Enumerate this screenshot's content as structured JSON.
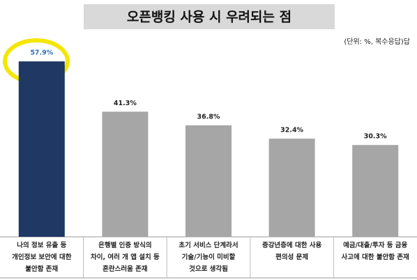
{
  "chart_data": {
    "type": "bar",
    "title": "오픈뱅킹 사용 시 우려되는 점",
    "subtitle": "(단위: %, 복수응답)답",
    "categories": [
      "나의 정보 유출 등\n개인정보 보안에 대한\n불안함 존재",
      "은행별 인증 방식의\n차이, 여러 개 앱 설치 등\n혼란스러움 존재",
      "초기 서비스 단계라서\n기술/기능이 미비할\n것으로 생각됨",
      "증강년층에 대한 사용\n편의성 문제",
      "예금/대출/투자 등 금융\n사고에 대한 불안함 존재"
    ],
    "values": [
      57.9,
      41.3,
      36.8,
      32.4,
      30.3
    ],
    "value_labels": [
      "57.9%",
      "41.3%",
      "36.8%",
      "32.4%",
      "30.3%"
    ],
    "colors": [
      "#1f3864",
      "#a6a6a6",
      "#a6a6a6",
      "#a6a6a6",
      "#a6a6a6"
    ],
    "label_colors": [
      "#2e75b6",
      "#222222",
      "#222222",
      "#222222",
      "#222222"
    ]
  }
}
